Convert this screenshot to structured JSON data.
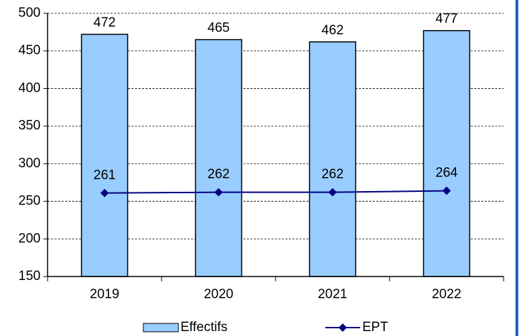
{
  "chart_data": {
    "type": "bar",
    "categories": [
      "2019",
      "2020",
      "2021",
      "2022"
    ],
    "series": [
      {
        "name": "Effectifs",
        "type": "bar",
        "color": "#99ccff",
        "values": [
          472,
          465,
          462,
          477
        ]
      },
      {
        "name": "EPT",
        "type": "line",
        "color": "#000080",
        "values": [
          261,
          262,
          262,
          264
        ]
      }
    ],
    "ylim": [
      150,
      500
    ],
    "yticks": [
      150,
      200,
      250,
      300,
      350,
      400,
      450,
      500
    ],
    "grid": true,
    "legend": "bottom"
  }
}
